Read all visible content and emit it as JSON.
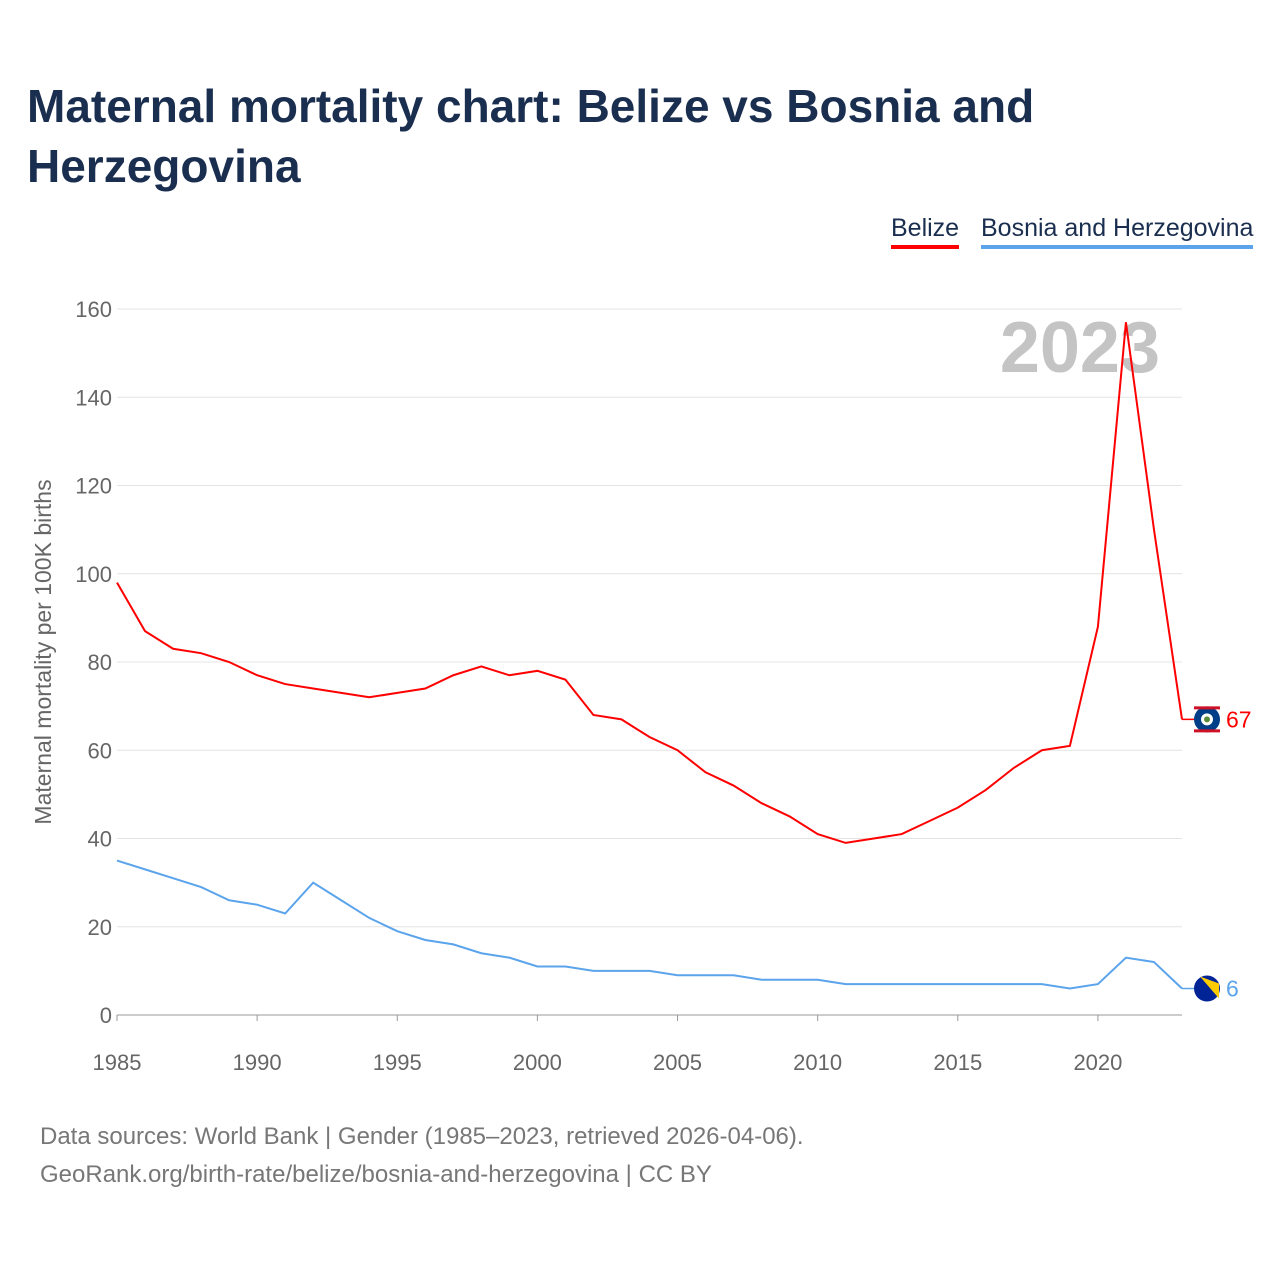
{
  "title": "Maternal mortality chart: Belize vs Bosnia and Herzegovina",
  "footer": {
    "line1": "Data sources: World Bank | Gender (1985–2023, retrieved 2026-04-06).",
    "line2": "GeoRank.org/birth-rate/belize/bosnia-and-herzegovina | CC BY"
  },
  "chart_data": {
    "type": "line",
    "title": "Maternal mortality chart: Belize vs Bosnia and Herzegovina",
    "xlabel": "",
    "ylabel": "Maternal mortality per 100K births",
    "xlim": [
      1985,
      2023
    ],
    "ylim": [
      0,
      160
    ],
    "x_ticks": [
      "1985",
      "1990",
      "1995",
      "2000",
      "2005",
      "2010",
      "2015",
      "2020"
    ],
    "y_ticks": [
      "0",
      "20",
      "40",
      "60",
      "80",
      "100",
      "120",
      "140",
      "160"
    ],
    "year_label": "2023",
    "legend_position": "top-right",
    "x": [
      1985,
      1986,
      1987,
      1988,
      1989,
      1990,
      1991,
      1992,
      1993,
      1994,
      1995,
      1996,
      1997,
      1998,
      1999,
      2000,
      2001,
      2002,
      2003,
      2004,
      2005,
      2006,
      2007,
      2008,
      2009,
      2010,
      2011,
      2012,
      2013,
      2014,
      2015,
      2016,
      2017,
      2018,
      2019,
      2020,
      2021,
      2022,
      2023
    ],
    "series": [
      {
        "name": "Belize",
        "color": "#ff0000",
        "end_label": "67",
        "values": [
          98,
          87,
          83,
          82,
          80,
          77,
          75,
          74,
          73,
          72,
          73,
          74,
          77,
          79,
          77,
          78,
          76,
          68,
          67,
          63,
          60,
          55,
          52,
          48,
          45,
          41,
          39,
          40,
          41,
          44,
          47,
          51,
          56,
          60,
          61,
          88,
          157,
          110,
          67
        ]
      },
      {
        "name": "Bosnia and Herzegovina",
        "color": "#5ba4ec",
        "end_label": "6",
        "values": [
          35,
          33,
          31,
          29,
          26,
          25,
          23,
          30,
          26,
          22,
          19,
          17,
          16,
          14,
          13,
          11,
          11,
          10,
          10,
          10,
          9,
          9,
          9,
          8,
          8,
          8,
          7,
          7,
          7,
          7,
          7,
          7,
          7,
          7,
          6,
          7,
          13,
          12,
          6
        ]
      }
    ]
  }
}
